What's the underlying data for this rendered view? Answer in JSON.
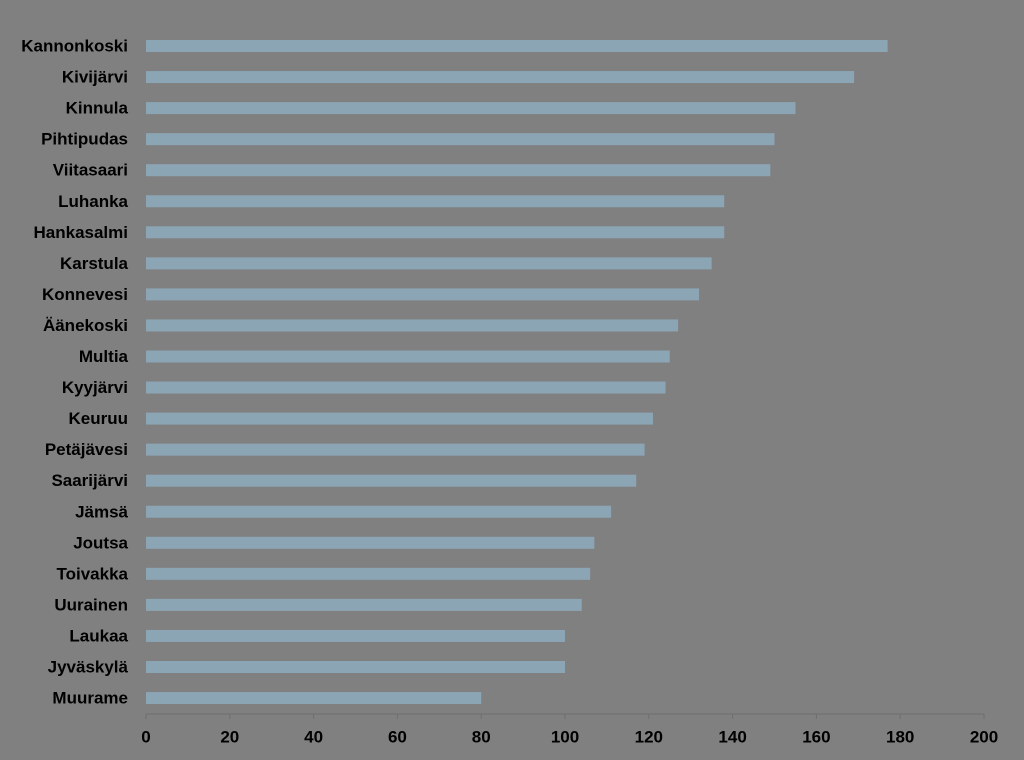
{
  "chart_data": {
    "type": "bar",
    "orientation": "horizontal",
    "categories": [
      "Kannonkoski",
      "Kivijärvi",
      "Kinnula",
      "Pihtipudas",
      "Viitasaari",
      "Luhanka",
      "Hankasalmi",
      "Karstula",
      "Konnevesi",
      "Äänekoski",
      "Multia",
      "Kyyjärvi",
      "Keuruu",
      "Petäjävesi",
      "Saarijärvi",
      "Jämsä",
      "Joutsa",
      "Toivakka",
      "Uurainen",
      "Laukaa",
      "Jyväskylä",
      "Muurame"
    ],
    "values": [
      177,
      169,
      155,
      150,
      149,
      138,
      138,
      135,
      132,
      127,
      125,
      124,
      121,
      119,
      117,
      111,
      107,
      106,
      104,
      100,
      100,
      80
    ],
    "xlim": [
      0,
      200
    ],
    "xticks": [
      "0",
      "20",
      "40",
      "60",
      "80",
      "100",
      "120",
      "140",
      "160",
      "180",
      "200"
    ],
    "title": "",
    "xlabel": "",
    "ylabel": "",
    "grid": false,
    "legend": false,
    "colors": {
      "background": "#808080",
      "bar": "#8BA5B4",
      "axis": "#6e6e6e",
      "text": "#000000"
    }
  }
}
